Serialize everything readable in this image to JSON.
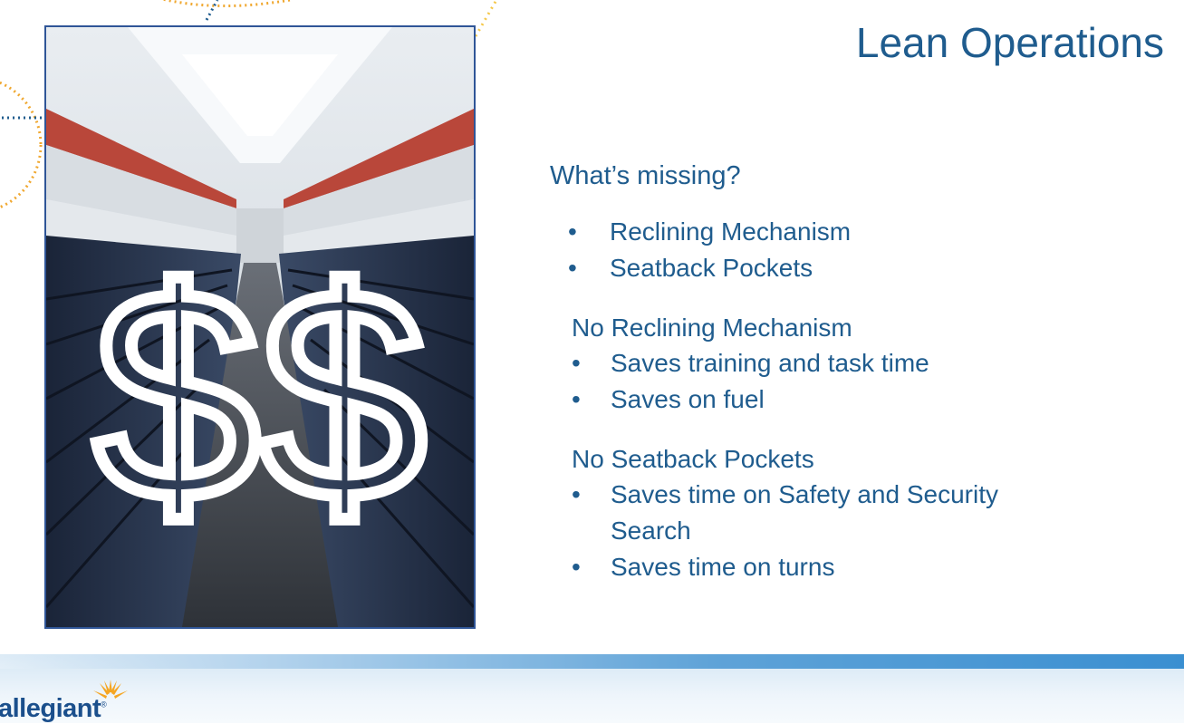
{
  "slide": {
    "title": "Lean Operations",
    "image": {
      "subject": "airplane-cabin-photo",
      "overlay_symbol": "$$"
    },
    "heading": "What’s missing?",
    "missing_items": [
      "Reclining Mechanism",
      "Seatback Pockets"
    ],
    "sections": [
      {
        "title": "No Reclining Mechanism",
        "items": [
          "Saves training and task time",
          "Saves on fuel"
        ]
      },
      {
        "title": "No Seatback Pockets",
        "items": [
          "Saves time on Safety and Security Search",
          "Saves time on turns"
        ]
      }
    ],
    "bullet": "•"
  },
  "footer": {
    "logo_text": "allegiant",
    "logo_registered": "®"
  },
  "colors": {
    "text": "#1f5c8e",
    "photo_border": "#2f5597",
    "footer_band": "#5fa3d8",
    "deco_dots": "#f0a830"
  }
}
